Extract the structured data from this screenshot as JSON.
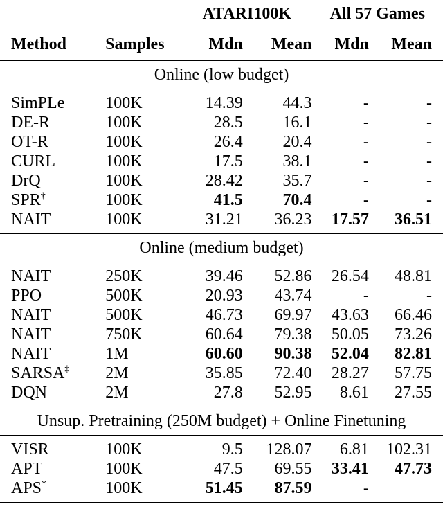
{
  "header": {
    "group1": "ATARI100K",
    "group2": "All 57 Games",
    "columns": [
      "Method",
      "Samples",
      "Mdn",
      "Mean",
      "Mdn",
      "Mean"
    ]
  },
  "sections": [
    {
      "title": "Online (low budget)",
      "rows": [
        {
          "method": "SimPLe",
          "sup": "",
          "samples": "100K",
          "atari_mdn": "14.39",
          "atari_mean": "44.3",
          "all_mdn": "-",
          "all_mean": "-"
        },
        {
          "method": "DE-R",
          "sup": "",
          "samples": "100K",
          "atari_mdn": "28.5",
          "atari_mean": "16.1",
          "all_mdn": "-",
          "all_mean": "-"
        },
        {
          "method": "OT-R",
          "sup": "",
          "samples": "100K",
          "atari_mdn": "26.4",
          "atari_mean": "20.4",
          "all_mdn": "-",
          "all_mean": "-"
        },
        {
          "method": "CURL",
          "sup": "",
          "samples": "100K",
          "atari_mdn": "17.5",
          "atari_mean": "38.1",
          "all_mdn": "-",
          "all_mean": "-"
        },
        {
          "method": "DrQ",
          "sup": "",
          "samples": "100K",
          "atari_mdn": "28.42",
          "atari_mean": "35.7",
          "all_mdn": "-",
          "all_mean": "-"
        },
        {
          "method": "SPR",
          "sup": "†",
          "samples": "100K",
          "atari_mdn": "41.5",
          "atari_mean": "70.4",
          "all_mdn": "-",
          "all_mean": "-",
          "bold": [
            "atari_mdn",
            "atari_mean"
          ]
        },
        {
          "method": "NAIT",
          "sup": "",
          "samples": "100K",
          "atari_mdn": "31.21",
          "atari_mean": "36.23",
          "all_mdn": "17.57",
          "all_mean": "36.51",
          "bold": [
            "all_mdn",
            "all_mean"
          ]
        }
      ]
    },
    {
      "title": "Online (medium budget)",
      "rows": [
        {
          "method": "NAIT",
          "sup": "",
          "samples": "250K",
          "atari_mdn": "39.46",
          "atari_mean": "52.86",
          "all_mdn": "26.54",
          "all_mean": "48.81"
        },
        {
          "method": "PPO",
          "sup": "",
          "samples": "500K",
          "atari_mdn": "20.93",
          "atari_mean": "43.74",
          "all_mdn": "-",
          "all_mean": "-"
        },
        {
          "method": "NAIT",
          "sup": "",
          "samples": "500K",
          "atari_mdn": "46.73",
          "atari_mean": "69.97",
          "all_mdn": "43.63",
          "all_mean": "66.46"
        },
        {
          "method": "NAIT",
          "sup": "",
          "samples": "750K",
          "atari_mdn": "60.64",
          "atari_mean": "79.38",
          "all_mdn": "50.05",
          "all_mean": "73.26"
        },
        {
          "method": "NAIT",
          "sup": "",
          "samples": "1M",
          "atari_mdn": "60.60",
          "atari_mean": "90.38",
          "all_mdn": "52.04",
          "all_mean": "82.81",
          "bold": [
            "atari_mdn",
            "atari_mean",
            "all_mdn",
            "all_mean"
          ]
        },
        {
          "method": "SARSA",
          "sup": "‡",
          "samples": "2M",
          "atari_mdn": "35.85",
          "atari_mean": "72.40",
          "all_mdn": "28.27",
          "all_mean": "57.75"
        },
        {
          "method": "DQN",
          "sup": "",
          "samples": "2M",
          "atari_mdn": "27.8",
          "atari_mean": "52.95",
          "all_mdn": "8.61",
          "all_mean": "27.55"
        }
      ]
    },
    {
      "title": "Unsup. Pretraining (250M budget) + Online Finetuning",
      "rows": [
        {
          "method": "VISR",
          "sup": "",
          "samples": "100K",
          "atari_mdn": "9.5",
          "atari_mean": "128.07",
          "all_mdn": "6.81",
          "all_mean": "102.31"
        },
        {
          "method": "APT",
          "sup": "",
          "samples": "100K",
          "atari_mdn": "47.5",
          "atari_mean": "69.55",
          "all_mdn": "33.41",
          "all_mean": "47.73",
          "bold": [
            "all_mdn",
            "all_mean"
          ]
        },
        {
          "method": "APS",
          "sup": "*",
          "samples": "100K",
          "atari_mdn": "51.45",
          "atari_mean": "87.59",
          "all_mdn": "-",
          "all_mean": "",
          "bold": [
            "atari_mdn",
            "atari_mean",
            "all_mdn"
          ]
        }
      ]
    }
  ]
}
